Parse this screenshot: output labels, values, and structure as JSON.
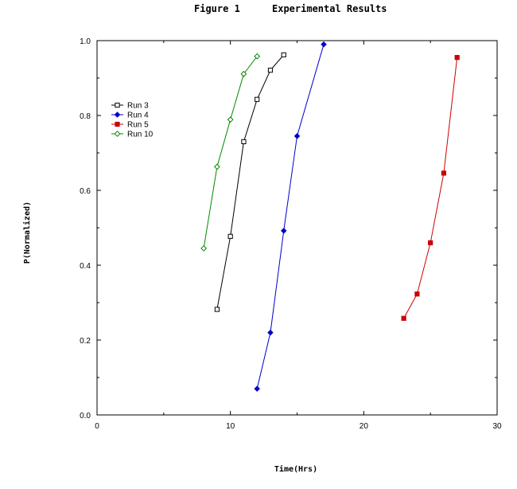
{
  "chart_data": {
    "type": "line",
    "title": "Figure 1",
    "subtitle": "Experimental Results",
    "xlabel": "Time(Hrs)",
    "ylabel": "P(Normalized)",
    "xlim": [
      0,
      30
    ],
    "ylim": [
      0.0,
      1.0
    ],
    "x_ticks": [
      0,
      10,
      20,
      30
    ],
    "x_tick_labels": [
      "0",
      "10",
      "20",
      "30"
    ],
    "y_ticks": [
      0.0,
      0.2,
      0.4,
      0.6,
      0.8,
      1.0
    ],
    "y_tick_labels": [
      "0.0",
      "0.2",
      "0.4",
      "0.6",
      "0.8",
      "1.0"
    ],
    "grid": false,
    "legend_position": "upper-left",
    "series": [
      {
        "name": "Run 3",
        "color": "#000000",
        "marker": "open-square",
        "x": [
          9,
          10,
          11,
          12,
          13,
          14
        ],
        "y": [
          0.282,
          0.477,
          0.73,
          0.843,
          0.921,
          0.962
        ]
      },
      {
        "name": "Run 4",
        "color": "#0000cc",
        "marker": "filled-diamond",
        "x": [
          12,
          13,
          14,
          15,
          17
        ],
        "y": [
          0.07,
          0.22,
          0.492,
          0.745,
          0.99
        ]
      },
      {
        "name": "Run 5",
        "color": "#cc0000",
        "marker": "filled-square",
        "x": [
          23,
          24,
          25,
          26,
          27
        ],
        "y": [
          0.258,
          0.323,
          0.46,
          0.646,
          0.955
        ]
      },
      {
        "name": "Run 10",
        "color": "#008800",
        "marker": "open-diamond",
        "x": [
          8,
          9,
          10,
          11,
          12
        ],
        "y": [
          0.445,
          0.663,
          0.789,
          0.911,
          0.958
        ]
      }
    ]
  }
}
